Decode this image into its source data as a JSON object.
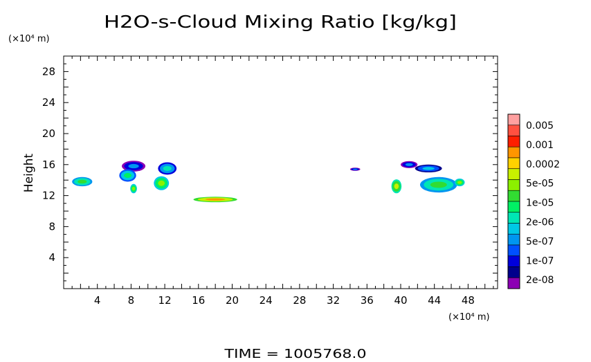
{
  "chart_data": {
    "type": "heatmap",
    "title": "H2O-s-Cloud Mixing Ratio [kg/kg]",
    "ylabel": "Height",
    "y_unit": "(×10⁴ m)",
    "x_unit": "(×10⁴ m)",
    "xlim": [
      0,
      51.5
    ],
    "ylim": [
      0,
      30
    ],
    "x_ticks": [
      4,
      8,
      12,
      16,
      20,
      24,
      28,
      32,
      36,
      40,
      44,
      48
    ],
    "y_ticks": [
      4,
      8,
      12,
      16,
      20,
      24,
      28
    ],
    "footer": "TIME = 1005768.0",
    "colorbar": {
      "labels": [
        "0.005",
        "0.001",
        "0.0002",
        "5e-05",
        "1e-05",
        "2e-06",
        "5e-07",
        "1e-07",
        "2e-08"
      ],
      "colors": [
        "#ffa0a0",
        "#ff5040",
        "#ff1e00",
        "#ff9600",
        "#ffd200",
        "#c8f000",
        "#8cf000",
        "#32dc32",
        "#00f064",
        "#00e6b4",
        "#00c8e6",
        "#0096f0",
        "#0050ff",
        "#0000dc",
        "#00008c",
        "#8c00b4"
      ]
    },
    "clouds": [
      {
        "name": "cloud-1",
        "cx": 2.2,
        "cy": 13.8,
        "rx": 1.2,
        "ry": 0.6,
        "level": 9
      },
      {
        "name": "cloud-2a",
        "cx": 8.3,
        "cy": 15.8,
        "rx": 1.4,
        "ry": 0.7,
        "level": 13
      },
      {
        "name": "cloud-2b",
        "cx": 7.6,
        "cy": 14.6,
        "rx": 1.0,
        "ry": 0.8,
        "level": 10
      },
      {
        "name": "cloud-2c",
        "cx": 8.3,
        "cy": 12.9,
        "rx": 0.4,
        "ry": 0.6,
        "level": 8
      },
      {
        "name": "cloud-3a",
        "cx": 12.3,
        "cy": 15.5,
        "rx": 1.1,
        "ry": 0.8,
        "level": 11
      },
      {
        "name": "cloud-3b",
        "cx": 11.6,
        "cy": 13.6,
        "rx": 0.9,
        "ry": 0.9,
        "level": 8
      },
      {
        "name": "cloud-4",
        "cx": 18.0,
        "cy": 11.5,
        "rx": 2.6,
        "ry": 0.35,
        "level": 5
      },
      {
        "name": "cloud-5",
        "cx": 34.6,
        "cy": 15.4,
        "rx": 0.6,
        "ry": 0.2,
        "level": 13
      },
      {
        "name": "cloud-6a",
        "cx": 39.5,
        "cy": 13.2,
        "rx": 0.6,
        "ry": 0.9,
        "level": 7
      },
      {
        "name": "cloud-6b",
        "cx": 41.0,
        "cy": 16.0,
        "rx": 1.0,
        "ry": 0.45,
        "level": 13
      },
      {
        "name": "cloud-7a",
        "cx": 43.3,
        "cy": 15.5,
        "rx": 1.6,
        "ry": 0.5,
        "level": 12
      },
      {
        "name": "cloud-7b",
        "cx": 44.5,
        "cy": 13.4,
        "rx": 2.2,
        "ry": 1.0,
        "level": 9
      },
      {
        "name": "cloud-7c",
        "cx": 47.0,
        "cy": 13.7,
        "rx": 0.6,
        "ry": 0.5,
        "level": 8
      }
    ]
  }
}
